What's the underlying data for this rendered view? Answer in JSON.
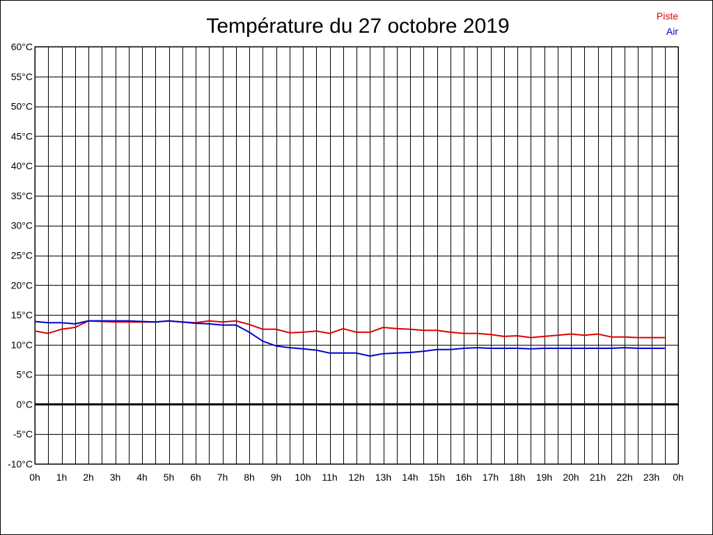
{
  "chart_data": {
    "type": "line",
    "title": "Température du 27 octobre 2019",
    "xlabel": "",
    "ylabel": "",
    "ylim": [
      -10,
      60
    ],
    "y_ticks": [
      60,
      55,
      50,
      45,
      40,
      35,
      30,
      25,
      20,
      15,
      10,
      5,
      0,
      -5,
      -10
    ],
    "y_tick_labels": [
      "60°C",
      "55°C",
      "50°C",
      "45°C",
      "40°C",
      "35°C",
      "30°C",
      "25°C",
      "20°C",
      "15°C",
      "10°C",
      "5°C",
      "0°C",
      "-5°C",
      "-10°C"
    ],
    "x_tick_labels": [
      "0h",
      "1h",
      "2h",
      "3h",
      "4h",
      "5h",
      "6h",
      "7h",
      "8h",
      "9h",
      "10h",
      "11h",
      "12h",
      "13h",
      "14h",
      "15h",
      "16h",
      "17h",
      "18h",
      "19h",
      "20h",
      "21h",
      "22h",
      "23h",
      "0h"
    ],
    "xlim": [
      0,
      24
    ],
    "grid": true,
    "legend_position": "top-right",
    "series": [
      {
        "name": "Piste",
        "color": "#dd0000",
        "x": [
          0,
          0.5,
          1,
          1.5,
          2,
          2.5,
          3,
          3.5,
          4,
          4.5,
          5,
          5.5,
          6,
          6.5,
          7,
          7.5,
          8,
          8.5,
          9,
          9.5,
          10,
          10.5,
          11,
          11.5,
          12,
          12.5,
          13,
          13.5,
          14,
          14.5,
          15,
          15.5,
          16,
          16.5,
          17,
          17.5,
          18,
          18.5,
          19,
          19.5,
          20,
          20.5,
          21,
          21.5,
          22,
          22.5,
          23,
          23.5
        ],
        "values": [
          12.3,
          11.9,
          12.6,
          12.9,
          14.0,
          13.9,
          13.8,
          13.8,
          13.8,
          13.8,
          14.0,
          13.8,
          13.7,
          14.0,
          13.8,
          14.0,
          13.4,
          12.6,
          12.6,
          12.0,
          12.1,
          12.3,
          11.9,
          12.7,
          12.1,
          12.1,
          12.9,
          12.7,
          12.6,
          12.4,
          12.4,
          12.1,
          11.9,
          11.9,
          11.7,
          11.4,
          11.5,
          11.2,
          11.4,
          11.6,
          11.8,
          11.6,
          11.8,
          11.3,
          11.3,
          11.2,
          11.2,
          11.2
        ]
      },
      {
        "name": "Air",
        "color": "#0000cc",
        "x": [
          0,
          0.5,
          1,
          1.5,
          2,
          2.5,
          3,
          3.5,
          4,
          4.5,
          5,
          5.5,
          6,
          6.5,
          7,
          7.5,
          8,
          8.5,
          9,
          9.5,
          10,
          10.5,
          11,
          11.5,
          12,
          12.5,
          13,
          13.5,
          14,
          14.5,
          15,
          15.5,
          16,
          16.5,
          17,
          17.5,
          18,
          18.5,
          19,
          19.5,
          20,
          20.5,
          21,
          21.5,
          22,
          22.5,
          23,
          23.5
        ],
        "values": [
          13.9,
          13.7,
          13.7,
          13.5,
          14.0,
          14.0,
          14.0,
          14.0,
          13.9,
          13.8,
          14.0,
          13.8,
          13.6,
          13.5,
          13.3,
          13.3,
          12.1,
          10.6,
          9.8,
          9.5,
          9.3,
          9.1,
          8.6,
          8.6,
          8.6,
          8.1,
          8.5,
          8.6,
          8.7,
          8.9,
          9.2,
          9.2,
          9.4,
          9.5,
          9.4,
          9.4,
          9.4,
          9.3,
          9.4,
          9.4,
          9.4,
          9.4,
          9.4,
          9.4,
          9.5,
          9.4,
          9.4,
          9.4
        ]
      }
    ]
  }
}
